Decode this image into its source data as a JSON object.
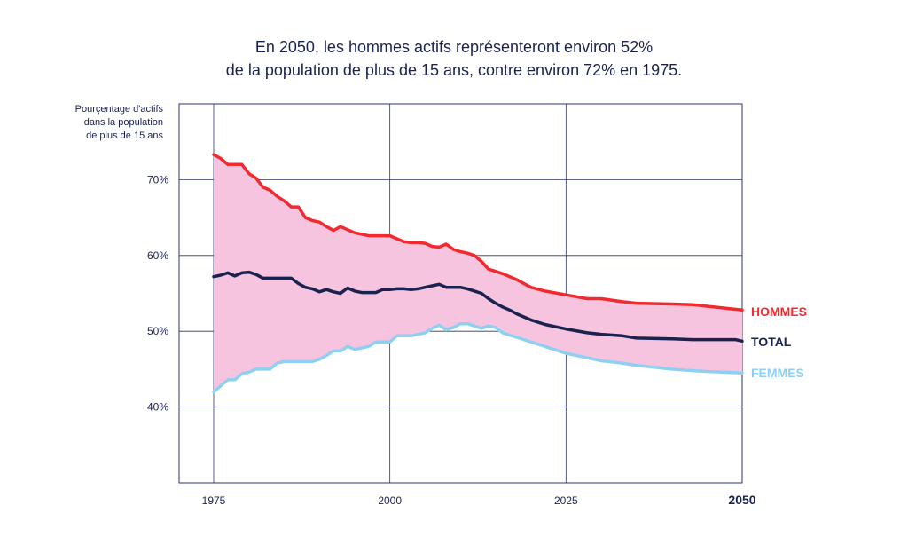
{
  "chart_data": {
    "type": "area",
    "title": [
      "En 2050, les hommes actifs représenteront environ 52%",
      "de la population de plus de 15 ans, contre environ 72% en 1975."
    ],
    "ylabel": [
      "Pourçentage d'actifs",
      "dans la population",
      "de plus de 15 ans"
    ],
    "xlim": [
      1975,
      2050
    ],
    "ylim": [
      30,
      80
    ],
    "x_ticks": [
      {
        "value": 1975,
        "label": "1975"
      },
      {
        "value": 2000,
        "label": "2000"
      },
      {
        "value": 2025,
        "label": "2025"
      },
      {
        "value": 2050,
        "label": "2050"
      }
    ],
    "y_ticks": [
      {
        "value": 40,
        "label": "40%"
      },
      {
        "value": 50,
        "label": "50%"
      },
      {
        "value": 60,
        "label": "60%"
      },
      {
        "value": 70,
        "label": "70%"
      }
    ],
    "grid": true,
    "band_fill": "#f7c4df",
    "series": [
      {
        "name": "HOMMES",
        "color": "#f02a2e",
        "points": [
          [
            1975,
            73.3
          ],
          [
            1976,
            72.8
          ],
          [
            1977,
            72.0
          ],
          [
            1978,
            72.0
          ],
          [
            1979,
            72.0
          ],
          [
            1980,
            70.8
          ],
          [
            1981,
            70.2
          ],
          [
            1982,
            69.0
          ],
          [
            1983,
            68.6
          ],
          [
            1984,
            67.8
          ],
          [
            1985,
            67.2
          ],
          [
            1986,
            66.4
          ],
          [
            1987,
            66.4
          ],
          [
            1988,
            65.0
          ],
          [
            1989,
            64.6
          ],
          [
            1990,
            64.4
          ],
          [
            1991,
            63.8
          ],
          [
            1992,
            63.3
          ],
          [
            1993,
            63.8
          ],
          [
            1994,
            63.4
          ],
          [
            1995,
            63.0
          ],
          [
            1996,
            62.8
          ],
          [
            1997,
            62.6
          ],
          [
            1998,
            62.6
          ],
          [
            1999,
            62.6
          ],
          [
            2000,
            62.6
          ],
          [
            2001,
            62.2
          ],
          [
            2002,
            61.8
          ],
          [
            2003,
            61.7
          ],
          [
            2004,
            61.7
          ],
          [
            2005,
            61.6
          ],
          [
            2006,
            61.2
          ],
          [
            2007,
            61.1
          ],
          [
            2008,
            61.5
          ],
          [
            2009,
            60.8
          ],
          [
            2010,
            60.5
          ],
          [
            2011,
            60.3
          ],
          [
            2012,
            60.0
          ],
          [
            2013,
            59.2
          ],
          [
            2014,
            58.2
          ],
          [
            2015,
            57.9
          ],
          [
            2016,
            57.6
          ],
          [
            2017,
            57.2
          ],
          [
            2018,
            56.8
          ],
          [
            2020,
            55.8
          ],
          [
            2022,
            55.3
          ],
          [
            2025,
            54.8
          ],
          [
            2028,
            54.3
          ],
          [
            2030,
            54.3
          ],
          [
            2033,
            53.9
          ],
          [
            2035,
            53.7
          ],
          [
            2040,
            53.6
          ],
          [
            2043,
            53.5
          ],
          [
            2045,
            53.3
          ],
          [
            2050,
            52.8
          ]
        ]
      },
      {
        "name": "TOTAL",
        "color": "#1a2250",
        "points": [
          [
            1975,
            57.2
          ],
          [
            1976,
            57.4
          ],
          [
            1977,
            57.7
          ],
          [
            1978,
            57.3
          ],
          [
            1979,
            57.7
          ],
          [
            1980,
            57.8
          ],
          [
            1981,
            57.5
          ],
          [
            1982,
            57.0
          ],
          [
            1983,
            57.0
          ],
          [
            1984,
            57.0
          ],
          [
            1985,
            57.0
          ],
          [
            1986,
            57.0
          ],
          [
            1987,
            56.3
          ],
          [
            1988,
            55.8
          ],
          [
            1989,
            55.6
          ],
          [
            1990,
            55.2
          ],
          [
            1991,
            55.5
          ],
          [
            1992,
            55.2
          ],
          [
            1993,
            55.0
          ],
          [
            1994,
            55.7
          ],
          [
            1995,
            55.3
          ],
          [
            1996,
            55.1
          ],
          [
            1997,
            55.1
          ],
          [
            1998,
            55.1
          ],
          [
            1999,
            55.5
          ],
          [
            2000,
            55.5
          ],
          [
            2001,
            55.6
          ],
          [
            2002,
            55.6
          ],
          [
            2003,
            55.5
          ],
          [
            2004,
            55.6
          ],
          [
            2005,
            55.8
          ],
          [
            2006,
            56.0
          ],
          [
            2007,
            56.2
          ],
          [
            2008,
            55.8
          ],
          [
            2009,
            55.8
          ],
          [
            2010,
            55.8
          ],
          [
            2011,
            55.6
          ],
          [
            2012,
            55.3
          ],
          [
            2013,
            55.0
          ],
          [
            2014,
            54.3
          ],
          [
            2015,
            53.7
          ],
          [
            2016,
            53.2
          ],
          [
            2017,
            52.8
          ],
          [
            2018,
            52.3
          ],
          [
            2020,
            51.5
          ],
          [
            2022,
            50.9
          ],
          [
            2025,
            50.3
          ],
          [
            2028,
            49.8
          ],
          [
            2030,
            49.6
          ],
          [
            2033,
            49.4
          ],
          [
            2035,
            49.1
          ],
          [
            2040,
            49.0
          ],
          [
            2043,
            48.9
          ],
          [
            2045,
            48.9
          ],
          [
            2049,
            48.9
          ],
          [
            2050,
            48.7
          ]
        ]
      },
      {
        "name": "FEMMES",
        "color": "#8fd0f2",
        "points": [
          [
            1975,
            42.0
          ],
          [
            1976,
            42.8
          ],
          [
            1977,
            43.6
          ],
          [
            1978,
            43.6
          ],
          [
            1979,
            44.4
          ],
          [
            1980,
            44.6
          ],
          [
            1981,
            45.0
          ],
          [
            1982,
            45.0
          ],
          [
            1983,
            45.0
          ],
          [
            1984,
            45.8
          ],
          [
            1985,
            46.0
          ],
          [
            1986,
            46.0
          ],
          [
            1987,
            46.0
          ],
          [
            1988,
            46.0
          ],
          [
            1989,
            46.0
          ],
          [
            1990,
            46.3
          ],
          [
            1991,
            46.8
          ],
          [
            1992,
            47.4
          ],
          [
            1993,
            47.4
          ],
          [
            1994,
            48.0
          ],
          [
            1995,
            47.6
          ],
          [
            1996,
            47.8
          ],
          [
            1997,
            48.0
          ],
          [
            1998,
            48.6
          ],
          [
            1999,
            48.6
          ],
          [
            2000,
            48.6
          ],
          [
            2001,
            49.4
          ],
          [
            2002,
            49.4
          ],
          [
            2003,
            49.4
          ],
          [
            2004,
            49.6
          ],
          [
            2005,
            49.8
          ],
          [
            2006,
            50.4
          ],
          [
            2007,
            50.8
          ],
          [
            2008,
            50.2
          ],
          [
            2009,
            50.5
          ],
          [
            2010,
            51.0
          ],
          [
            2011,
            51.0
          ],
          [
            2012,
            50.7
          ],
          [
            2013,
            50.4
          ],
          [
            2014,
            50.7
          ],
          [
            2015,
            50.5
          ],
          [
            2016,
            49.8
          ],
          [
            2017,
            49.5
          ],
          [
            2018,
            49.2
          ],
          [
            2020,
            48.6
          ],
          [
            2022,
            48.0
          ],
          [
            2025,
            47.1
          ],
          [
            2028,
            46.5
          ],
          [
            2030,
            46.1
          ],
          [
            2033,
            45.8
          ],
          [
            2035,
            45.5
          ],
          [
            2040,
            45.0
          ],
          [
            2043,
            44.8
          ],
          [
            2045,
            44.7
          ],
          [
            2050,
            44.5
          ]
        ]
      }
    ]
  }
}
